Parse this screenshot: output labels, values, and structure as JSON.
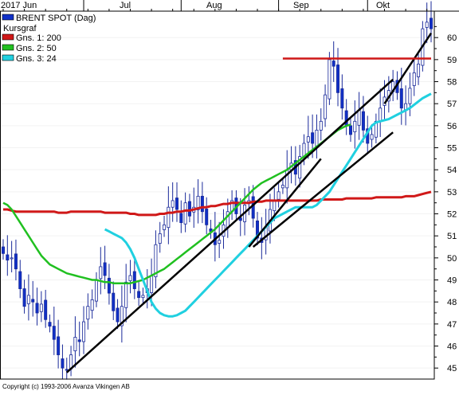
{
  "chart_data": {
    "type": "line",
    "title": "BRENT SPOT (Dag)",
    "subtitle": "Kursgraf",
    "legend": [
      {
        "label": "BRENT SPOT (Dag)",
        "color": "#1030c8"
      },
      {
        "label": "Gns. 1: 200",
        "color": "#d01818"
      },
      {
        "label": "Gns. 2: 50",
        "color": "#20c020"
      },
      {
        "label": "Gns. 3: 24",
        "color": "#20d0e0"
      }
    ],
    "legend_position": "top-left",
    "x_ticks": [
      "2017 Jun",
      "Jul",
      "Aug",
      "Sep",
      "Okt"
    ],
    "y_ticks": [
      45,
      46,
      47,
      48,
      49,
      50,
      51,
      52,
      53,
      54,
      55,
      56,
      57,
      58,
      59,
      60
    ],
    "ylim": [
      44.5,
      61.2
    ],
    "grid": true,
    "copyright": "Copyright (c) 1993-2006 Avanza Vikingen AB",
    "price_close": [
      50.2,
      49.9,
      50.0,
      49.5,
      48.6,
      47.8,
      48.3,
      48.0,
      47.5,
      47.9,
      47.2,
      46.9,
      46.3,
      45.6,
      45.0,
      44.9,
      45.6,
      46.4,
      46.2,
      47.1,
      47.8,
      48.1,
      49.0,
      49.6,
      49.2,
      48.4,
      47.6,
      47.1,
      47.8,
      48.9,
      49.2,
      48.6,
      48.2,
      48.3,
      48.6,
      49.2,
      50.6,
      51.1,
      51.5,
      52.3,
      52.6,
      52.2,
      51.6,
      52.5,
      51.9,
      52.3,
      52.8,
      52.1,
      51.5,
      51.2,
      50.6,
      50.8,
      51.5,
      52.1,
      52.6,
      52.0,
      51.7,
      52.4,
      52.6,
      51.8,
      50.9,
      50.7,
      51.4,
      52.2,
      52.6,
      53.0,
      53.3,
      54.0,
      54.3,
      53.8,
      54.6,
      55.2,
      55.5,
      55.2,
      55.8,
      56.2,
      57.4,
      59.0,
      58.7,
      57.5,
      56.8,
      56.0,
      55.6,
      56.2,
      56.7,
      55.8,
      55.2,
      55.6,
      56.2,
      56.8,
      57.3,
      57.6,
      58.0,
      57.5,
      56.8,
      57.0,
      57.7,
      58.4,
      58.8,
      60.4,
      60.7,
      60.4
    ],
    "sma200": [
      52.2,
      52.2,
      52.15,
      52.1,
      52.1,
      52.1,
      52.1,
      52.1,
      52.1,
      52.1,
      52.1,
      52.1,
      52.1,
      52.05,
      52.05,
      52.05,
      52.1,
      52.1,
      52.1,
      52.1,
      52.1,
      52.1,
      52.1,
      52.1,
      52.05,
      52.05,
      52.05,
      52.05,
      52.05,
      52.05,
      52.0,
      52.0,
      51.95,
      51.95,
      51.95,
      51.95,
      51.95,
      52.0,
      52.0,
      52.05,
      52.05,
      52.1,
      52.1,
      52.15,
      52.15,
      52.2,
      52.25,
      52.3,
      52.3,
      52.35,
      52.35,
      52.4,
      52.45,
      52.45,
      52.5,
      52.5,
      52.5,
      52.5,
      52.5,
      52.55,
      52.55,
      52.55,
      52.6,
      52.6,
      52.6,
      52.6,
      52.6,
      52.6,
      52.6,
      52.6,
      52.6,
      52.6,
      52.6,
      52.6,
      52.6,
      52.65,
      52.65,
      52.65,
      52.65,
      52.65,
      52.65,
      52.7,
      52.7,
      52.7,
      52.7,
      52.7,
      52.7,
      52.7,
      52.75,
      52.75,
      52.75,
      52.75,
      52.75,
      52.75,
      52.75,
      52.8,
      52.8,
      52.8,
      52.85,
      52.9,
      52.95,
      53.0
    ],
    "sma50": [
      52.5,
      52.4,
      52.2,
      51.9,
      51.6,
      51.3,
      51.0,
      50.7,
      50.4,
      50.1,
      49.9,
      49.7,
      49.6,
      49.5,
      49.4,
      49.3,
      49.25,
      49.2,
      49.15,
      49.1,
      49.05,
      49.0,
      49.0,
      48.95,
      48.9,
      48.9,
      48.85,
      48.85,
      48.85,
      48.85,
      48.85,
      48.9,
      48.95,
      49.0,
      49.1,
      49.2,
      49.3,
      49.4,
      49.5,
      49.65,
      49.8,
      49.95,
      50.1,
      50.25,
      50.4,
      50.55,
      50.7,
      50.85,
      51.0,
      51.15,
      51.3,
      51.5,
      51.7,
      51.9,
      52.1,
      52.3,
      52.5,
      52.7,
      52.9,
      53.1,
      53.25,
      53.4,
      53.5,
      53.6,
      53.7,
      53.8,
      53.9,
      54.0,
      54.15,
      54.3,
      54.45,
      54.6,
      54.75,
      54.9,
      55.05,
      55.2,
      55.35,
      55.5,
      55.65,
      55.8,
      55.9,
      56.0,
      56.05
    ],
    "sma24": [
      51.3,
      51.2,
      51.1,
      51.0,
      50.9,
      50.7,
      50.4,
      50.0,
      49.5,
      49.0,
      48.5,
      48.0,
      47.7,
      47.5,
      47.4,
      47.35,
      47.35,
      47.4,
      47.5,
      47.6,
      47.8,
      48.0,
      48.2,
      48.4,
      48.6,
      48.8,
      49.0,
      49.2,
      49.4,
      49.6,
      49.8,
      50.0,
      50.2,
      50.4,
      50.6,
      50.8,
      51.0,
      51.2,
      51.4,
      51.6,
      51.8,
      51.9,
      52.0,
      52.1,
      52.2,
      52.3,
      52.3,
      52.3,
      52.3,
      52.3,
      52.4,
      52.6,
      52.8,
      53.0,
      53.3,
      53.6,
      53.9,
      54.2,
      54.5,
      54.8,
      55.1,
      55.4,
      55.7,
      56.0,
      56.15,
      56.2,
      56.25,
      56.3,
      56.4,
      56.5,
      56.6,
      56.7,
      56.8,
      56.95,
      57.1,
      57.25,
      57.35,
      57.45
    ],
    "trendlines": [
      {
        "from": [
          15,
          44.8
        ],
        "to": [
          92,
          58.1
        ]
      },
      {
        "from": [
          59,
          50.5
        ],
        "to": [
          92,
          55.7
        ]
      },
      {
        "from": [
          58,
          50.5
        ],
        "to": [
          75,
          54.5
        ]
      },
      {
        "from": [
          90,
          57.0
        ],
        "to": [
          101,
          60.2
        ]
      }
    ],
    "resistance": {
      "value": 59.05,
      "from": 66,
      "to": 101
    }
  }
}
